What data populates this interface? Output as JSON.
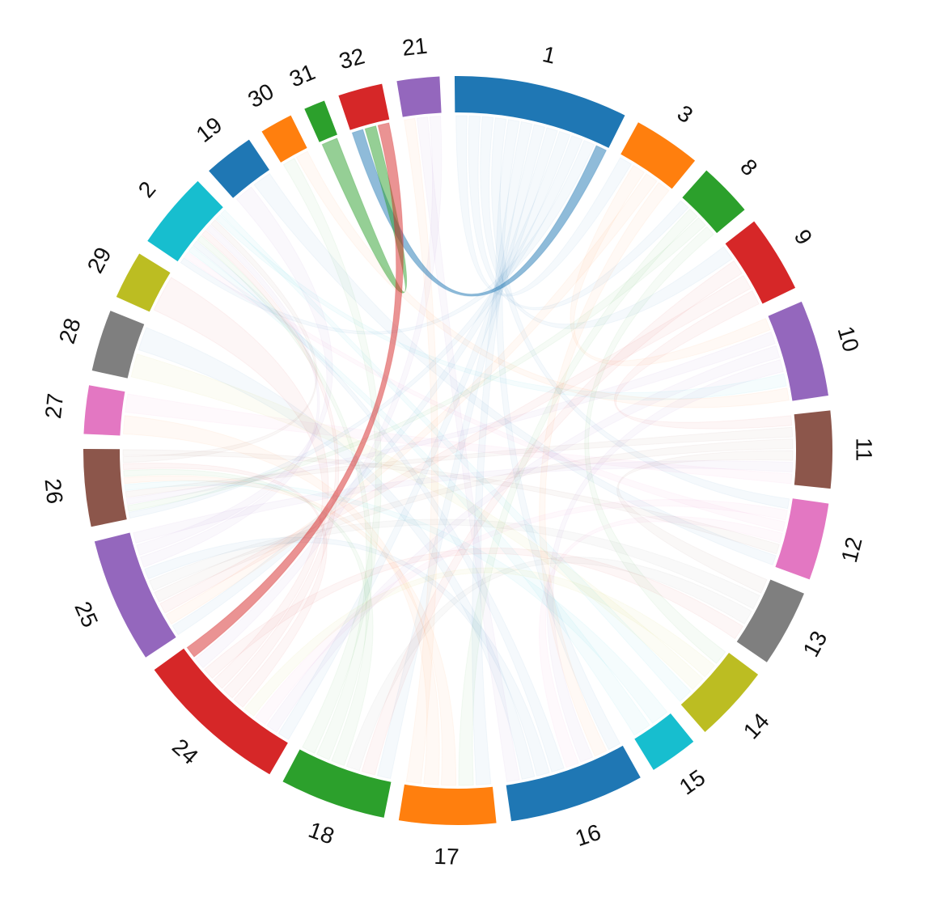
{
  "chart_data": {
    "type": "chord",
    "title": "",
    "segments": [
      {
        "label": "1",
        "value": 9.0,
        "color": "#1f77b4"
      },
      {
        "label": "3",
        "value": 3.5,
        "color": "#ff7f0e"
      },
      {
        "label": "8",
        "value": 2.8,
        "color": "#2ca02c"
      },
      {
        "label": "9",
        "value": 4.0,
        "color": "#d62728"
      },
      {
        "label": "10",
        "value": 5.0,
        "color": "#9467bd"
      },
      {
        "label": "11",
        "value": 4.0,
        "color": "#8c564b"
      },
      {
        "label": "12",
        "value": 4.0,
        "color": "#e377c2"
      },
      {
        "label": "13",
        "value": 4.0,
        "color": "#7f7f7f"
      },
      {
        "label": "14",
        "value": 4.0,
        "color": "#bcbd22"
      },
      {
        "label": "15",
        "value": 2.5,
        "color": "#17becf"
      },
      {
        "label": "16",
        "value": 7.0,
        "color": "#1f77b4"
      },
      {
        "label": "17",
        "value": 5.0,
        "color": "#ff7f0e"
      },
      {
        "label": "18",
        "value": 5.5,
        "color": "#2ca02c"
      },
      {
        "label": "24",
        "value": 8.0,
        "color": "#d62728"
      },
      {
        "label": "25",
        "value": 6.5,
        "color": "#9467bd"
      },
      {
        "label": "26",
        "value": 4.0,
        "color": "#8c564b"
      },
      {
        "label": "27",
        "value": 2.5,
        "color": "#e377c2"
      },
      {
        "label": "28",
        "value": 3.2,
        "color": "#7f7f7f"
      },
      {
        "label": "29",
        "value": 2.5,
        "color": "#bcbd22"
      },
      {
        "label": "2",
        "value": 4.0,
        "color": "#17becf"
      },
      {
        "label": "19",
        "value": 2.6,
        "color": "#1f77b4"
      },
      {
        "label": "30",
        "value": 1.7,
        "color": "#ff7f0e"
      },
      {
        "label": "31",
        "value": 1.1,
        "color": "#2ca02c"
      },
      {
        "label": "32",
        "value": 2.3,
        "color": "#d62728"
      },
      {
        "label": "21",
        "value": 2.2,
        "color": "#9467bd"
      }
    ],
    "highlighted_links": [
      {
        "source": "1",
        "target": "32",
        "color": "#1f77b4"
      },
      {
        "source": "31",
        "target": "32",
        "color": "#2ca02c"
      },
      {
        "source": "32",
        "target": "24",
        "color": "#d62728"
      }
    ],
    "faded_links": [
      [
        "1",
        "3"
      ],
      [
        "1",
        "8"
      ],
      [
        "1",
        "9"
      ],
      [
        "1",
        "12"
      ],
      [
        "1",
        "16"
      ],
      [
        "1",
        "17"
      ],
      [
        "1",
        "18"
      ],
      [
        "1",
        "24"
      ],
      [
        "1",
        "25"
      ],
      [
        "1",
        "26"
      ],
      [
        "1",
        "2"
      ],
      [
        "3",
        "10"
      ],
      [
        "3",
        "25"
      ],
      [
        "3",
        "16"
      ],
      [
        "8",
        "17"
      ],
      [
        "8",
        "26"
      ],
      [
        "8",
        "14"
      ],
      [
        "9",
        "18"
      ],
      [
        "9",
        "25"
      ],
      [
        "9",
        "11"
      ],
      [
        "10",
        "26"
      ],
      [
        "10",
        "24"
      ],
      [
        "10",
        "16"
      ],
      [
        "11",
        "26"
      ],
      [
        "11",
        "25"
      ],
      [
        "11",
        "13"
      ],
      [
        "12",
        "24"
      ],
      [
        "12",
        "2"
      ],
      [
        "12",
        "16"
      ],
      [
        "13",
        "25"
      ],
      [
        "13",
        "18"
      ],
      [
        "14",
        "24"
      ],
      [
        "14",
        "28"
      ],
      [
        "15",
        "26"
      ],
      [
        "15",
        "2"
      ],
      [
        "16",
        "2"
      ],
      [
        "16",
        "25"
      ],
      [
        "16",
        "28"
      ],
      [
        "17",
        "26"
      ],
      [
        "17",
        "27"
      ],
      [
        "17",
        "21"
      ],
      [
        "18",
        "26"
      ],
      [
        "18",
        "2"
      ],
      [
        "18",
        "30"
      ],
      [
        "24",
        "26"
      ],
      [
        "24",
        "2"
      ],
      [
        "24",
        "29"
      ],
      [
        "24",
        "13"
      ],
      [
        "25",
        "2"
      ],
      [
        "25",
        "19"
      ],
      [
        "25",
        "11"
      ],
      [
        "26",
        "2"
      ],
      [
        "26",
        "12"
      ],
      [
        "21",
        "16"
      ],
      [
        "21",
        "24"
      ],
      [
        "2",
        "10"
      ],
      [
        "2",
        "14"
      ],
      [
        "19",
        "12"
      ],
      [
        "30",
        "10"
      ],
      [
        "27",
        "11"
      ]
    ]
  }
}
